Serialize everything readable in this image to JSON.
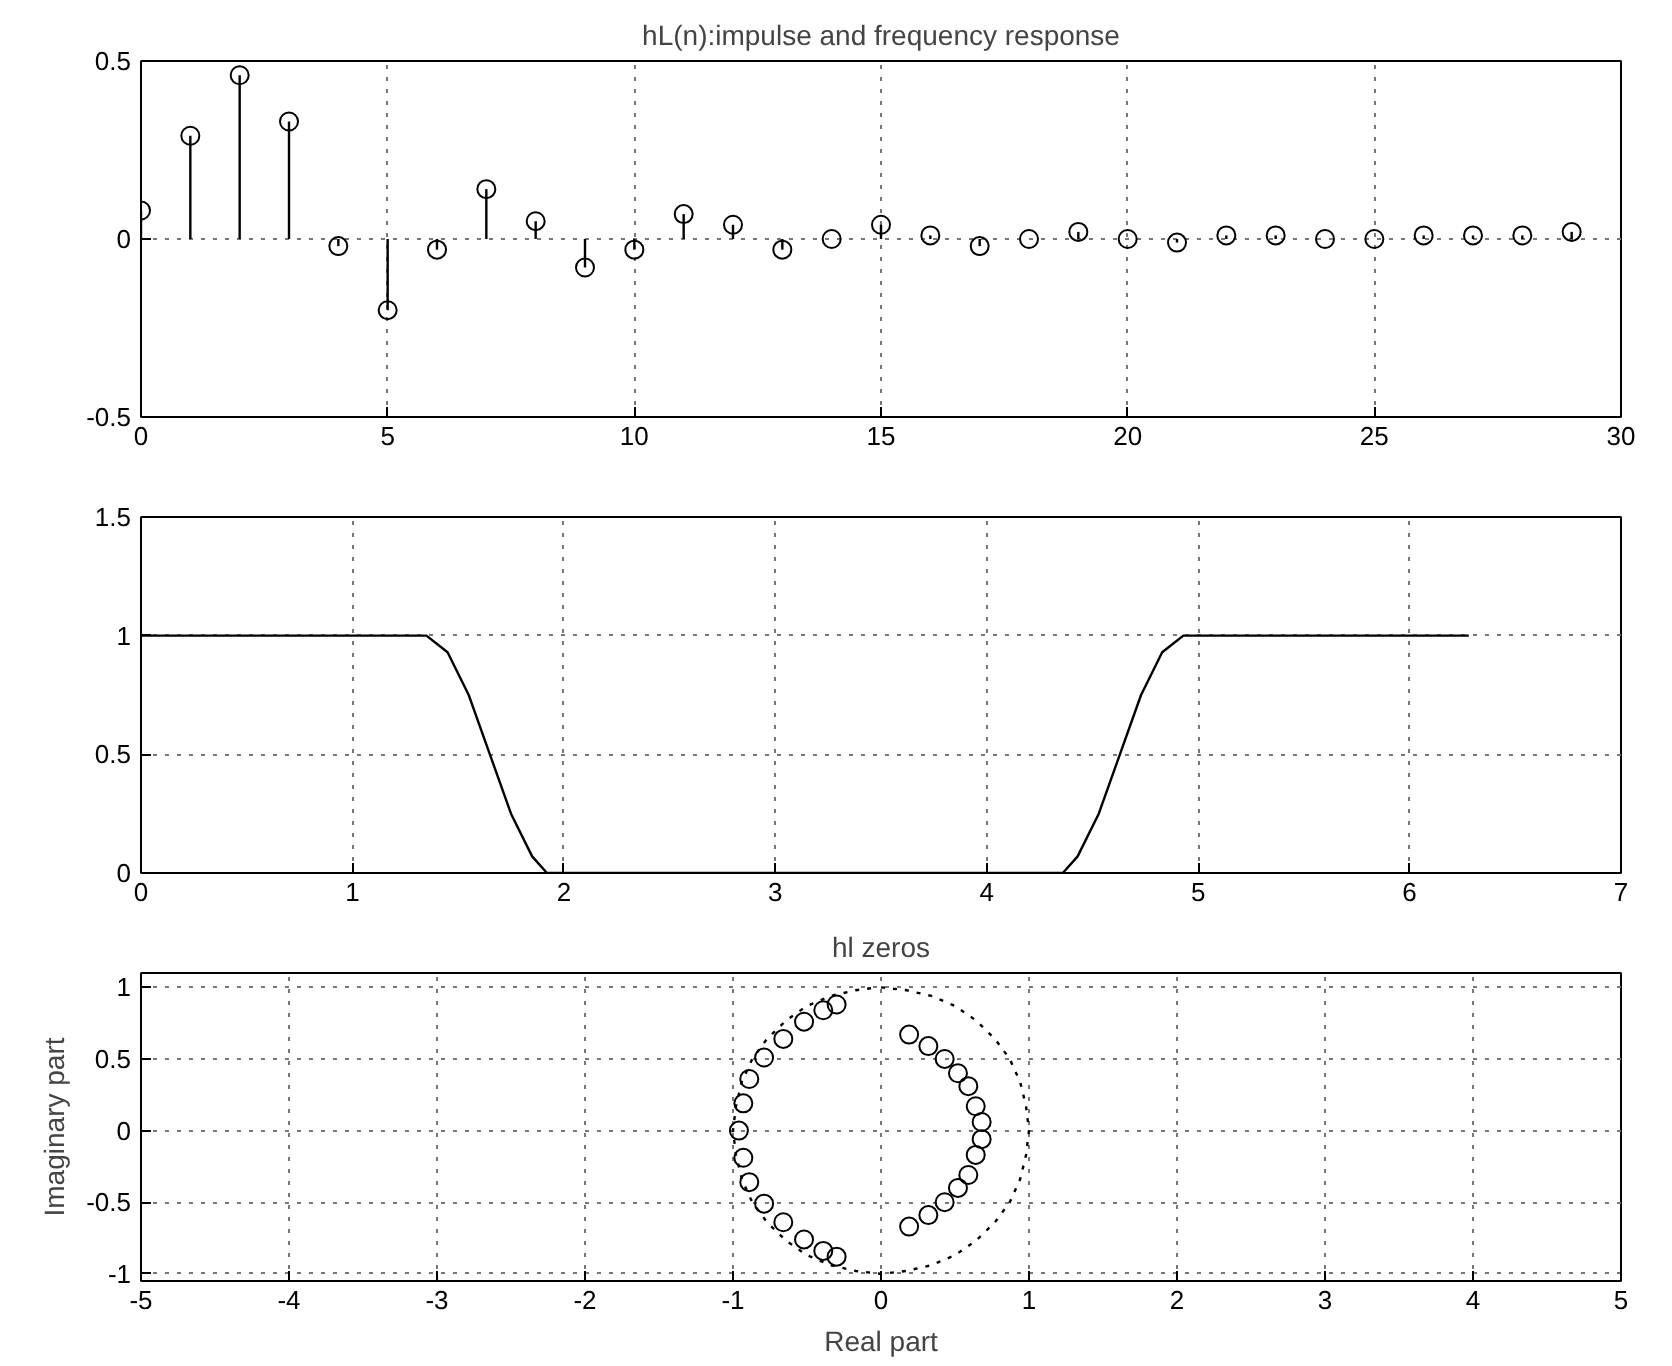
{
  "chart_data": [
    {
      "type": "lollipop",
      "title": "hL(n):impulse and frequency response",
      "marker": "circle",
      "grid": true,
      "x": [
        0,
        1,
        2,
        3,
        4,
        5,
        6,
        7,
        8,
        9,
        10,
        11,
        12,
        13,
        14,
        15,
        16,
        17,
        18,
        19,
        20,
        21,
        22,
        23,
        24,
        25,
        26,
        27,
        28,
        29
      ],
      "series": [
        {
          "color": "#000000",
          "values": [
            0.08,
            0.29,
            0.46,
            0.33,
            -0.02,
            -0.2,
            -0.03,
            0.14,
            0.05,
            -0.08,
            -0.03,
            0.07,
            0.04,
            -0.03,
            0.0,
            0.04,
            0.01,
            -0.02,
            0.0,
            0.02,
            0.0,
            -0.01,
            0.01,
            0.01,
            0.0,
            0.0,
            0.01,
            0.01,
            0.01,
            0.02
          ]
        }
      ],
      "xlim": [
        0,
        30
      ],
      "xticks": [
        0,
        5,
        10,
        15,
        20,
        25,
        30
      ],
      "ylim": [
        -0.5,
        0.5
      ],
      "yticks": [
        -0.5,
        0,
        0.5
      ]
    },
    {
      "type": "line",
      "grid": true,
      "line_style": "solid",
      "x": [
        0,
        1.35,
        1.45,
        1.55,
        1.65,
        1.75,
        1.85,
        1.92,
        4.36,
        4.43,
        4.53,
        4.63,
        4.73,
        4.83,
        4.93,
        6.28
      ],
      "series": [
        {
          "color": "#000000",
          "values": [
            1,
            1,
            0.93,
            0.75,
            0.5,
            0.25,
            0.07,
            0,
            0,
            0.07,
            0.25,
            0.5,
            0.75,
            0.93,
            1,
            1
          ]
        }
      ],
      "xlim": [
        0,
        7
      ],
      "xticks": [
        0,
        1,
        2,
        3,
        4,
        5,
        6,
        7
      ],
      "ylim": [
        0,
        1.5
      ],
      "yticks": [
        0,
        0.5,
        1,
        1.5
      ]
    },
    {
      "type": "scatter",
      "title": "hl zeros",
      "xlabel": "Real part",
      "ylabel": "Imaginary part",
      "grid": true,
      "marker": "circle",
      "series": [
        {
          "color": "#000000",
          "x": [
            -0.3,
            -0.39,
            -0.52,
            -0.66,
            -0.79,
            -0.89,
            -0.93,
            -0.96,
            -0.93,
            -0.89,
            -0.79,
            -0.66,
            -0.52,
            -0.39,
            -0.3,
            0.19,
            0.32,
            0.43,
            0.52,
            0.59,
            0.64,
            0.68,
            0.68,
            0.64,
            0.59,
            0.52,
            0.43,
            0.32,
            0.19
          ],
          "values": [
            0.88,
            0.84,
            0.76,
            0.64,
            0.51,
            0.36,
            0.19,
            0,
            -0.19,
            -0.36,
            -0.51,
            -0.64,
            -0.76,
            -0.84,
            -0.88,
            0.67,
            0.59,
            0.5,
            0.4,
            0.31,
            0.17,
            0.06,
            -0.06,
            -0.17,
            -0.31,
            -0.4,
            -0.5,
            -0.59,
            -0.67
          ]
        },
        {
          "type": "line",
          "line_style": "dotted",
          "marker": "none",
          "color": "#000000",
          "x": [
            0,
            0.17,
            0.34,
            0.5,
            0.64,
            0.77,
            0.87,
            0.94,
            0.98,
            1,
            0.98,
            0.94,
            0.87,
            0.77,
            0.64,
            0.5,
            0.34,
            0.17,
            0,
            -0.17,
            -0.34,
            -0.5,
            -0.64,
            -0.77,
            -0.87,
            -0.94,
            -0.98,
            -1,
            -0.98,
            -0.94,
            -0.87,
            -0.77,
            -0.64,
            -0.5,
            -0.34,
            -0.17,
            -0.02
          ],
          "values": [
            1,
            0.98,
            0.94,
            0.87,
            0.77,
            0.64,
            0.5,
            0.34,
            0.17,
            0,
            -0.17,
            -0.34,
            -0.5,
            -0.64,
            -0.77,
            -0.87,
            -0.94,
            -0.98,
            -1,
            -0.98,
            -0.94,
            -0.87,
            -0.77,
            -0.64,
            -0.5,
            -0.34,
            -0.17,
            0,
            0.17,
            0.34,
            0.5,
            0.64,
            0.77,
            0.87,
            0.94,
            0.98,
            1
          ]
        }
      ],
      "xlim": [
        -5,
        5
      ],
      "xticks": [
        -5,
        -4,
        -3,
        -2,
        -1,
        0,
        1,
        2,
        3,
        4,
        5
      ],
      "ylim": [
        -1.05,
        1.1
      ],
      "yticks": [
        -1,
        -0.5,
        0,
        0.5,
        1
      ]
    }
  ]
}
